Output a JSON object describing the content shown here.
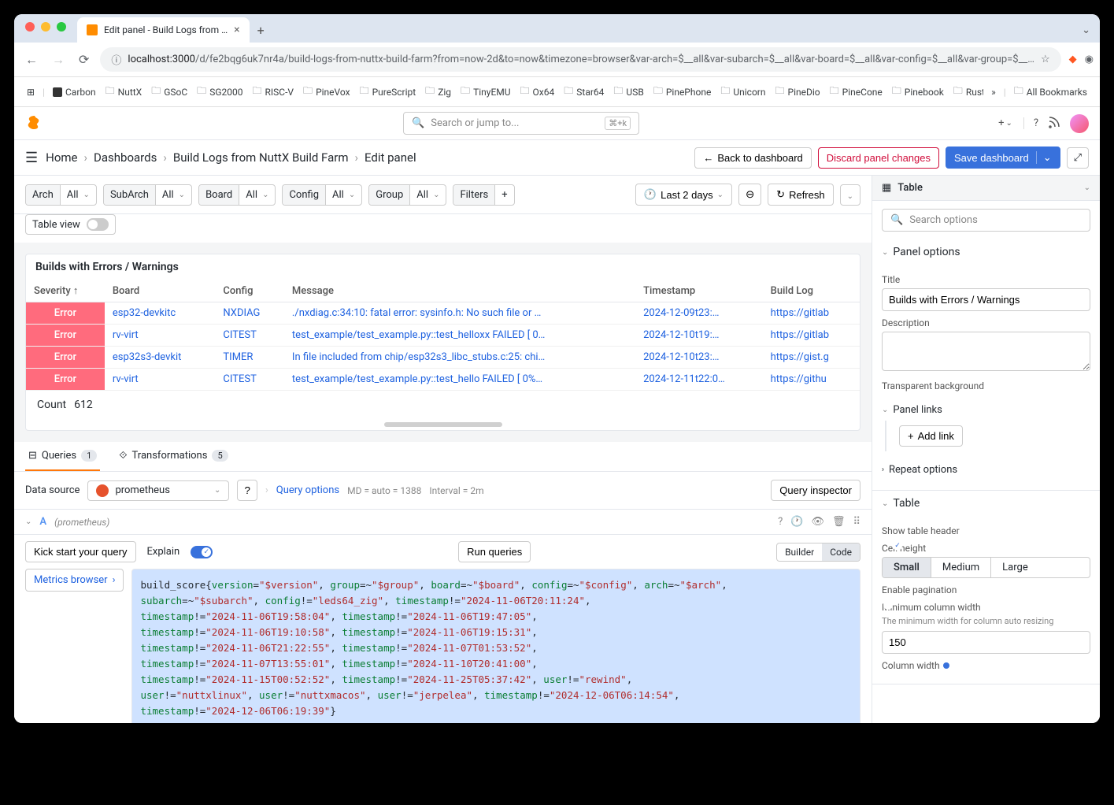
{
  "browser": {
    "tab_title": "Edit panel - Build Logs from …",
    "url_host": "localhost:3000",
    "url_path": "/d/fe2bqg6uk7nr4a/build-logs-from-nuttx-build-farm?from=now-2d&to=now&timezone=browser&var-arch=$__all&var-subarch=$__all&var-board=$__all&var-config=$__all&var-group=$__…",
    "bookmarks": [
      "Carbon",
      "NuttX",
      "GSoC",
      "SG2000",
      "RISC-V",
      "PineVox",
      "PureScript",
      "Zig",
      "TinyEMU",
      "Ox64",
      "Star64",
      "USB",
      "PinePhone",
      "Unicorn",
      "PineDio",
      "PineCone",
      "Pinebook",
      "Rust"
    ],
    "all_bookmarks": "All Bookmarks"
  },
  "nav": {
    "search_placeholder": "Search or jump to...",
    "kbd": "⌘+k"
  },
  "crumbs": {
    "home": "Home",
    "dashboards": "Dashboards",
    "dashboard": "Build Logs from NuttX Build Farm",
    "edit": "Edit panel",
    "back": "Back to dashboard",
    "discard": "Discard panel changes",
    "save": "Save dashboard"
  },
  "vars": {
    "arch": {
      "label": "Arch",
      "value": "All"
    },
    "subarch": {
      "label": "SubArch",
      "value": "All"
    },
    "board": {
      "label": "Board",
      "value": "All"
    },
    "config": {
      "label": "Config",
      "value": "All"
    },
    "group": {
      "label": "Group",
      "value": "All"
    },
    "filters": "Filters",
    "timerange": "Last 2 days",
    "refresh": "Refresh",
    "table_view": "Table view"
  },
  "panel": {
    "title": "Builds with Errors / Warnings",
    "columns": [
      "Severity ↑",
      "Board",
      "Config",
      "Message",
      "Timestamp",
      "Build Log"
    ],
    "rows": [
      {
        "sev": "Error",
        "board": "esp32-devkitc",
        "config": "NXDIAG",
        "msg": "./nxdiag.c:34:10: fatal error: sysinfo.h: No such file or …",
        "ts": "2024-12-09t23:…",
        "log": "https://gitlab"
      },
      {
        "sev": "Error",
        "board": "rv-virt",
        "config": "CITEST",
        "msg": "test_example/test_example.py::test_helloxx FAILED [ 0…",
        "ts": "2024-12-10t19:…",
        "log": "https://gitlab"
      },
      {
        "sev": "Error",
        "board": "esp32s3-devkit",
        "config": "TIMER",
        "msg": "In file included from chip/esp32s3_libc_stubs.c:25: chi…",
        "ts": "2024-12-10t23:…",
        "log": "https://gist.g"
      },
      {
        "sev": "Error",
        "board": "rv-virt",
        "config": "CITEST",
        "msg": "test_example/test_example.py::test_hello FAILED [ 0%…",
        "ts": "2024-12-11t22:0…",
        "log": "https://githu"
      }
    ],
    "count_label": "Count",
    "count": "612"
  },
  "tabs": {
    "queries": "Queries",
    "queries_badge": "1",
    "transformations": "Transformations",
    "transformations_badge": "5"
  },
  "query": {
    "datasource_label": "Data source",
    "datasource": "prometheus",
    "query_options": "Query options",
    "md": "MD = auto = 1388",
    "interval": "Interval = 2m",
    "inspector": "Query inspector",
    "letter": "A",
    "ds_hint": "(prometheus)",
    "kickstart": "Kick start your query",
    "explain": "Explain",
    "run": "Run queries",
    "builder": "Builder",
    "code": "Code",
    "metrics_browser": "Metrics browser",
    "code1_html": "build_score{<span class='k'>version</span>=<span class='s'>\"$version\"</span>, <span class='k'>group</span>=~<span class='s'>\"$group\"</span>, <span class='k'>board</span>=~<span class='s'>\"$board\"</span>, <span class='k'>config</span>=~<span class='s'>\"$config\"</span>, <span class='k'>arch</span>=~<span class='s'>\"$arch\"</span>,<br><span class='k'>subarch</span>=~<span class='s'>\"$subarch\"</span>, <span class='k'>config</span>!=<span class='s'>\"leds64_zig\"</span>, <span class='k'>timestamp</span>!=<span class='s'>\"2024-11-06T20:11:24\"</span>,<br><span class='k'>timestamp</span>!=<span class='s'>\"2024-11-06T19:58:04\"</span>, <span class='k'>timestamp</span>!=<span class='s'>\"2024-11-06T19:47:05\"</span>,<br><span class='k'>timestamp</span>!=<span class='s'>\"2024-11-06T19:10:58\"</span>, <span class='k'>timestamp</span>!=<span class='s'>\"2024-11-06T19:15:31\"</span>,<br><span class='k'>timestamp</span>!=<span class='s'>\"2024-11-06T21:22:55\"</span>, <span class='k'>timestamp</span>!=<span class='s'>\"2024-11-07T01:53:52\"</span>,<br><span class='k'>timestamp</span>!=<span class='s'>\"2024-11-07T13:55:01\"</span>, <span class='k'>timestamp</span>!=<span class='s'>\"2024-11-10T20:41:00\"</span>,<br><span class='k'>timestamp</span>!=<span class='s'>\"2024-11-15T00:52:52\"</span>, <span class='k'>timestamp</span>!=<span class='s'>\"2024-11-25T05:37:42\"</span>, <span class='k'>user</span>!=<span class='s'>\"rewind\"</span>,<br><span class='k'>user</span>!=<span class='s'>\"nuttxlinux\"</span>, <span class='k'>user</span>!=<span class='s'>\"nuttxmacos\"</span>, <span class='k'>user</span>!=<span class='s'>\"jerpelea\"</span>, <span class='k'>timestamp</span>!=<span class='s'>\"2024-12-06T06:14:54\"</span>,<br><span class='k'>timestamp</span>!=<span class='s'>\"2024-12-06T06:19:39\"</span>}",
    "code2_html": "build_score {<span class='k'>version</span>=<span class='s'>\"$version\"</span>, <span class='k'>group</span>=~<span class='s'>\"$group\"</span>, <span class='k'>board</span>=~<span class='s'>\"$board\"</span>, <span class='k'>config</span>=~<span class='s'>\"$config\"</span>, <span class='k'>arch</span>=~<span class='s'>\"$arch\"</span>, <span class='k'>subarch</span>=~<span class='s'>\"$subarch\"</span>,<br><span class='k'>config</span>!=<span class='s'>\"leds64_zig\"</span>, <span class='k'>timestamp</span>!=<span class='s'>\"2024-11-06T20:11:24\"</span>, <span class='k'>timestamp</span>!=<span class='s'>\"2024-11-06T19:58:04\"</span>, <span class='k'>timestamp</span>!=<span class='s'>\"2024-11-06T19:47:05\"</span>,"
  },
  "sidebar": {
    "viz_type": "Table",
    "search_placeholder": "Search options",
    "panel_options": "Panel options",
    "title_label": "Title",
    "title_value": "Builds with Errors / Warnings",
    "description_label": "Description",
    "transparent_label": "Transparent background",
    "panel_links": "Panel links",
    "add_link": "Add link",
    "repeat_options": "Repeat options",
    "table_section": "Table",
    "show_header": "Show table header",
    "cell_height": "Cell height",
    "cell_heights": [
      "Small",
      "Medium",
      "Large"
    ],
    "cell_height_active": "Small",
    "pagination": "Enable pagination",
    "min_col_width": "Minimum column width",
    "min_col_hint": "The minimum width for column auto resizing",
    "min_col_value": "150",
    "col_width": "Column width"
  }
}
